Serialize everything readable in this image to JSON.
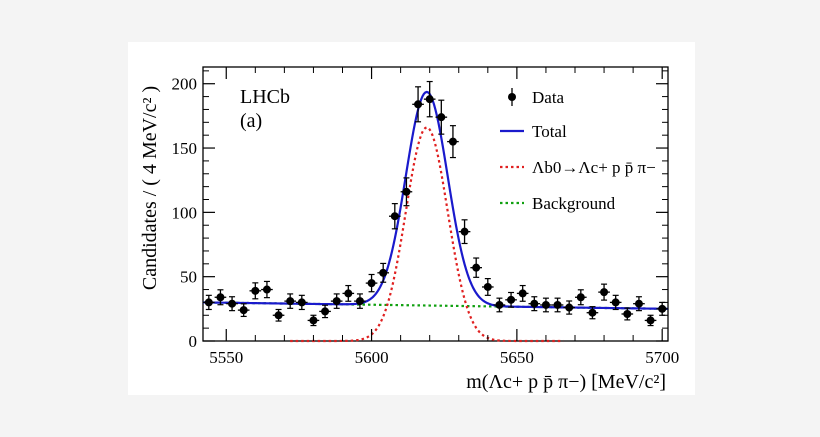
{
  "chart_data": {
    "type": "scatter",
    "experiment_label": "LHCb",
    "panel_label": "(a)",
    "xlabel": "m(Λc+ p p̄ π−) [MeV/c²]",
    "ylabel": "Candidates / ( 4 MeV/c² )",
    "xlim": [
      5542,
      5702
    ],
    "ylim": [
      0,
      213
    ],
    "xticks": [
      5550,
      5600,
      5650,
      5700
    ],
    "yticks": [
      0,
      50,
      100,
      150,
      200
    ],
    "grid": false,
    "legend_position": "top-right",
    "legend": [
      {
        "label": "Data",
        "style": "marker",
        "color": "#000000"
      },
      {
        "label": "Total",
        "style": "solid",
        "color": "#1a1acc"
      },
      {
        "label": "Λb0→Λc+ p p̄ π−",
        "style": "dotted",
        "color": "#e02020"
      },
      {
        "label": "Background",
        "style": "dotted",
        "color": "#10a010"
      }
    ],
    "data": {
      "x": [
        5544,
        5548,
        5552,
        5556,
        5560,
        5564,
        5568,
        5572,
        5576,
        5580,
        5584,
        5588,
        5592,
        5596,
        5600,
        5604,
        5608,
        5612,
        5616,
        5620,
        5624,
        5628,
        5632,
        5636,
        5640,
        5644,
        5648,
        5652,
        5656,
        5660,
        5664,
        5668,
        5672,
        5676,
        5680,
        5684,
        5688,
        5692,
        5696,
        5700
      ],
      "y": [
        30,
        34,
        29,
        24,
        39,
        40,
        20,
        31,
        30,
        16,
        23,
        31,
        37,
        31,
        45,
        53,
        97,
        116,
        184,
        188,
        174,
        155,
        85,
        57,
        42,
        28,
        32,
        37,
        29,
        28,
        28,
        26,
        34,
        22,
        38,
        30,
        21,
        29,
        16,
        25
      ],
      "err": [
        5.5,
        5.8,
        5.4,
        4.9,
        6.2,
        6.3,
        4.5,
        5.6,
        5.5,
        4.0,
        4.8,
        5.6,
        6.1,
        5.6,
        6.7,
        7.3,
        9.8,
        10.8,
        13.6,
        13.7,
        13.2,
        12.4,
        9.2,
        7.5,
        6.5,
        5.3,
        5.7,
        6.1,
        5.4,
        5.3,
        5.3,
        5.1,
        5.8,
        4.7,
        6.2,
        5.5,
        4.6,
        5.4,
        4.0,
        5.0
      ]
    },
    "model": {
      "signal_mean": 5619,
      "signal_sigma": 7.2,
      "signal_peak": 166,
      "background_start": 30,
      "background_slope": -0.03125
    }
  }
}
